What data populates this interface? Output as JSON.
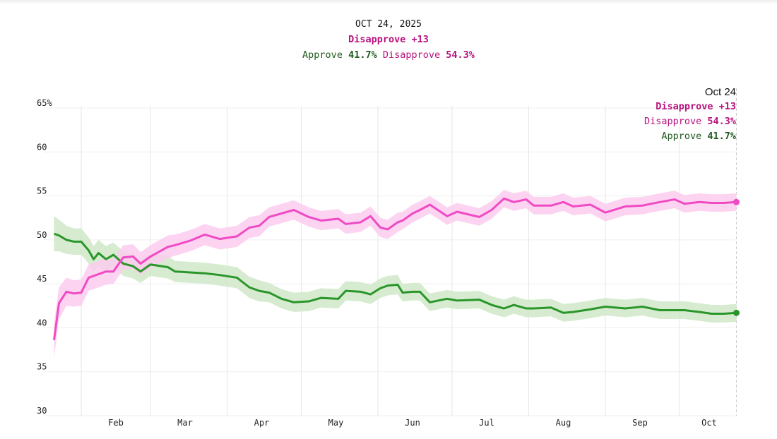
{
  "header": {
    "date": "OCT 24, 2025",
    "net_label": "Disapprove +13",
    "approve_label": "Approve",
    "approve_value": "41.7%",
    "disapprove_label": "Disapprove",
    "disapprove_value": "54.3%"
  },
  "latest_callout": {
    "date": "Oct 24",
    "net_label": "Disapprove +13",
    "disapprove_label": "Disapprove",
    "disapprove_value": "54.3%",
    "approve_label": "Approve",
    "approve_value": "41.7%"
  },
  "colors": {
    "approve_line": "#2a962a",
    "approve_band": "#cfe7c8",
    "approve_text": "#1f5a1f",
    "disapprove_line": "#f04ac4",
    "disapprove_band": "#fbcdee",
    "disapprove_text": "#b8117f"
  },
  "chart_data": {
    "type": "line",
    "title": "",
    "xlabel": "",
    "ylabel": "",
    "ylim": [
      30,
      65
    ],
    "y_ticks": [
      "30",
      "35",
      "40",
      "45",
      "50",
      "55",
      "60",
      "65%"
    ],
    "y_tick_values": [
      30,
      35,
      40,
      45,
      50,
      55,
      60,
      65
    ],
    "x_ticks": [
      {
        "label": "Feb",
        "date": "2025-02-15"
      },
      {
        "label": "Mar",
        "date": "2025-03-15"
      },
      {
        "label": "Apr",
        "date": "2025-04-15"
      },
      {
        "label": "May",
        "date": "2025-05-15"
      },
      {
        "label": "Jun",
        "date": "2025-06-15"
      },
      {
        "label": "Jul",
        "date": "2025-07-15"
      },
      {
        "label": "Aug",
        "date": "2025-08-15"
      },
      {
        "label": "Sep",
        "date": "2025-09-15"
      },
      {
        "label": "Oct",
        "date": "2025-10-13"
      }
    ],
    "month_gridlines": [
      "2025-02-01",
      "2025-03-01",
      "2025-04-01",
      "2025-05-01",
      "2025-06-01",
      "2025-07-01",
      "2025-08-01",
      "2025-09-01",
      "2025-10-01"
    ],
    "grid": true,
    "x": [
      "2025-01-21",
      "2025-01-23",
      "2025-01-26",
      "2025-01-29",
      "2025-02-01",
      "2025-02-04",
      "2025-02-06",
      "2025-02-08",
      "2025-02-11",
      "2025-02-14",
      "2025-02-18",
      "2025-02-22",
      "2025-02-25",
      "2025-03-01",
      "2025-03-08",
      "2025-03-11",
      "2025-03-17",
      "2025-03-23",
      "2025-03-29",
      "2025-04-05",
      "2025-04-10",
      "2025-04-14",
      "2025-04-18",
      "2025-04-23",
      "2025-04-28",
      "2025-05-04",
      "2025-05-09",
      "2025-05-16",
      "2025-05-19",
      "2025-05-25",
      "2025-05-29",
      "2025-06-02",
      "2025-06-05",
      "2025-06-09",
      "2025-06-11",
      "2025-06-15",
      "2025-06-18",
      "2025-06-22",
      "2025-06-29",
      "2025-07-03",
      "2025-07-12",
      "2025-07-17",
      "2025-07-22",
      "2025-07-26",
      "2025-07-31",
      "2025-08-03",
      "2025-08-10",
      "2025-08-15",
      "2025-08-19",
      "2025-08-26",
      "2025-09-01",
      "2025-09-09",
      "2025-09-16",
      "2025-09-23",
      "2025-09-29",
      "2025-10-03",
      "2025-10-09",
      "2025-10-14",
      "2025-10-19",
      "2025-10-24"
    ],
    "series": [
      {
        "name": "Approve",
        "values": [
          50.7,
          50.5,
          50.0,
          49.8,
          49.8,
          48.8,
          47.8,
          48.5,
          47.8,
          48.3,
          47.3,
          47.0,
          46.4,
          47.2,
          46.9,
          46.4,
          46.3,
          46.2,
          46.0,
          45.7,
          44.6,
          44.2,
          44.0,
          43.3,
          42.9,
          43.0,
          43.4,
          43.3,
          44.2,
          44.1,
          43.8,
          44.5,
          44.8,
          44.9,
          44.0,
          44.1,
          44.1,
          42.9,
          43.3,
          43.1,
          43.2,
          42.6,
          42.2,
          42.6,
          42.2,
          42.2,
          42.3,
          41.7,
          41.8,
          42.1,
          42.4,
          42.2,
          42.4,
          42.0,
          42.0,
          42.0,
          41.8,
          41.6,
          41.6,
          41.7
        ]
      },
      {
        "name": "Disapprove",
        "values": [
          38.6,
          42.8,
          44.1,
          43.9,
          44.0,
          45.7,
          45.9,
          46.1,
          46.4,
          46.4,
          48.0,
          48.1,
          47.3,
          48.1,
          49.2,
          49.4,
          49.9,
          50.6,
          50.1,
          50.4,
          51.4,
          51.6,
          52.6,
          53.0,
          53.4,
          52.6,
          52.2,
          52.4,
          51.8,
          52.0,
          52.7,
          51.4,
          51.2,
          52.0,
          52.2,
          53.0,
          53.4,
          54.0,
          52.7,
          53.2,
          52.6,
          53.4,
          54.7,
          54.3,
          54.6,
          53.9,
          53.9,
          54.3,
          53.8,
          54.0,
          53.1,
          53.8,
          53.9,
          54.3,
          54.6,
          54.1,
          54.3,
          54.2,
          54.2,
          54.3
        ]
      }
    ],
    "band_halfwidth": [
      2.0,
      1.8,
      1.6,
      1.5,
      1.5,
      1.5,
      1.5,
      1.5,
      1.5,
      1.4,
      1.4,
      1.4,
      1.3,
      1.3,
      1.3,
      1.2,
      1.2,
      1.2,
      1.2,
      1.2,
      1.2,
      1.2,
      1.1,
      1.1,
      1.1,
      1.1,
      1.1,
      1.1,
      1.1,
      1.1,
      1.1,
      1.1,
      1.1,
      1.1,
      1.0,
      1.0,
      1.0,
      1.0,
      1.0,
      1.0,
      1.0,
      1.0,
      1.0,
      1.0,
      1.0,
      1.0,
      1.0,
      1.0,
      1.0,
      1.0,
      1.0,
      1.0,
      1.0,
      1.0,
      1.0,
      1.0,
      1.0,
      1.0,
      1.0,
      1.0
    ]
  }
}
